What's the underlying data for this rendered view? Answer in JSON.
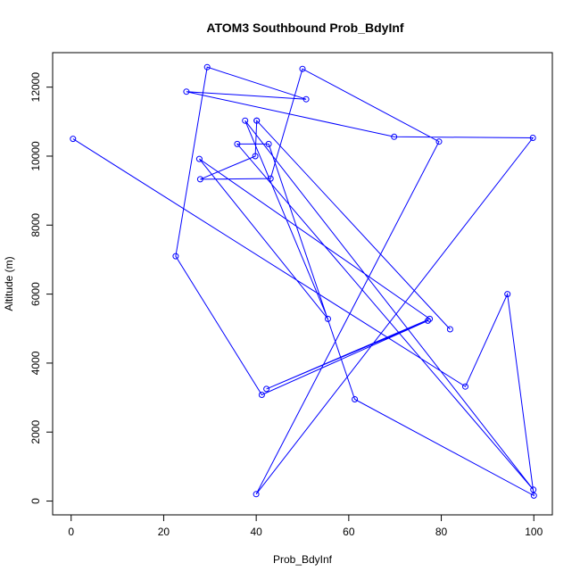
{
  "chart_data": {
    "type": "line",
    "title": "ATOM3 Southbound Prob_BdyInf",
    "xlabel": "Prob_BdyInf",
    "ylabel": "Altitude (m)",
    "xlim": [
      -4,
      104
    ],
    "ylim": [
      -400,
      13000
    ],
    "xticks": [
      0,
      20,
      40,
      60,
      80,
      100
    ],
    "yticks": [
      0,
      2000,
      4000,
      6000,
      8000,
      10000,
      12000
    ],
    "grid": false,
    "series_color": "#0000ff",
    "series": [
      {
        "points": [
          [
            0.4,
            10500
          ],
          [
            85.2,
            3320
          ],
          [
            94.3,
            6000
          ],
          [
            100.0,
            160
          ],
          [
            61.3,
            2950
          ],
          [
            42.7,
            10350
          ],
          [
            35.9,
            10350
          ],
          [
            99.9,
            330
          ],
          [
            37.6,
            11030
          ],
          [
            55.5,
            5280
          ],
          [
            27.7,
            9920
          ],
          [
            77.5,
            5280
          ],
          [
            42.2,
            3250
          ],
          [
            77.1,
            5230
          ],
          [
            41.2,
            3080
          ],
          [
            22.6,
            7100
          ],
          [
            29.4,
            12580
          ],
          [
            50.8,
            11650
          ],
          [
            24.9,
            11870
          ],
          [
            69.8,
            10560
          ],
          [
            99.8,
            10530
          ],
          [
            40.0,
            200
          ],
          [
            79.5,
            10420
          ],
          [
            50.0,
            12530
          ],
          [
            43.1,
            9350
          ],
          [
            27.9,
            9330
          ],
          [
            39.8,
            10000
          ],
          [
            40.1,
            11030
          ],
          [
            81.9,
            4980
          ],
          [
            40.1,
            11030
          ]
        ]
      }
    ]
  }
}
